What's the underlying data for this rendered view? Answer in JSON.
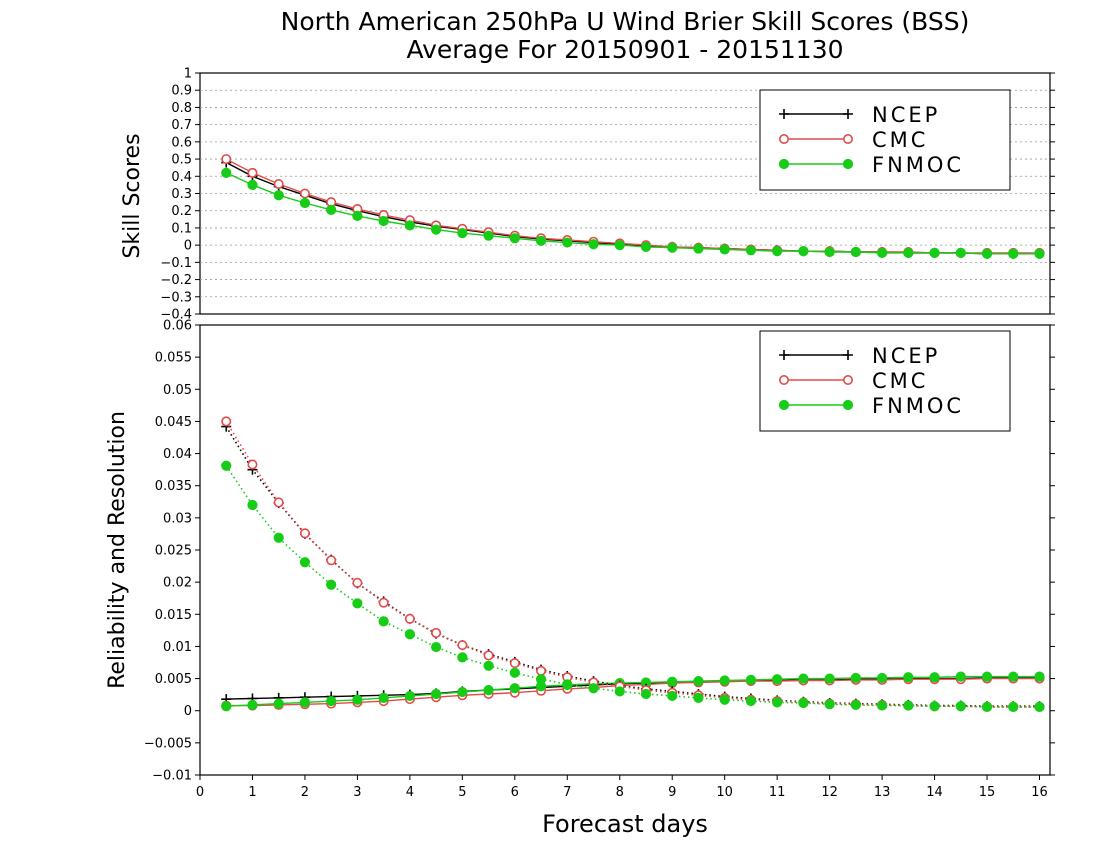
{
  "chart_data": {
    "title_lines": [
      "North American 250hPa U Wind Brier Skill Scores (BSS)",
      "Average For 20150901 - 20151130"
    ],
    "xlabel": "Forecast days",
    "x_ticks": [
      "0",
      "1",
      "2",
      "3",
      "4",
      "5",
      "6",
      "7",
      "8",
      "9",
      "10",
      "11",
      "12",
      "13",
      "14",
      "15",
      "16"
    ],
    "xlim": [
      0,
      16.2
    ],
    "x": [
      0.5,
      1,
      1.5,
      2,
      2.5,
      3,
      3.5,
      4,
      4.5,
      5,
      5.5,
      6,
      6.5,
      7,
      7.5,
      8,
      8.5,
      9,
      9.5,
      10,
      10.5,
      11,
      11.5,
      12,
      12.5,
      13,
      13.5,
      14,
      14.5,
      15,
      15.5,
      16
    ],
    "colors": {
      "NCEP": "#000000",
      "CMC": "#e34a4a",
      "FNMOC": "#16cc16"
    },
    "panels": [
      {
        "type": "line",
        "ylabel": "Skill Scores",
        "ylim": [
          -0.4,
          1.0
        ],
        "y_ticks": [
          "1",
          "0.9",
          "0.8",
          "0.7",
          "0.6",
          "0.5",
          "0.4",
          "0.3",
          "0.2",
          "0.1",
          "0",
          "−0.1",
          "−0.2",
          "−0.3",
          "−0.4"
        ],
        "grid": true,
        "legend": {
          "position": "top-right",
          "entries": [
            "NCEP",
            "CMC",
            "FNMOC"
          ]
        },
        "series": [
          {
            "name": "NCEP",
            "marker": "plus",
            "style": "solid",
            "values": [
              0.48,
              0.4,
              0.34,
              0.29,
              0.24,
              0.2,
              0.165,
              0.135,
              0.11,
              0.09,
              0.07,
              0.05,
              0.035,
              0.025,
              0.015,
              0.005,
              -0.005,
              -0.01,
              -0.015,
              -0.02,
              -0.025,
              -0.03,
              -0.035,
              -0.035,
              -0.04,
              -0.04,
              -0.045,
              -0.045,
              -0.045,
              -0.05,
              -0.05,
              -0.05
            ]
          },
          {
            "name": "CMC",
            "marker": "circle-open",
            "style": "solid",
            "values": [
              0.5,
              0.42,
              0.355,
              0.3,
              0.25,
              0.21,
              0.175,
              0.145,
              0.115,
              0.095,
              0.075,
              0.055,
              0.04,
              0.03,
              0.02,
              0.01,
              0.0,
              -0.01,
              -0.015,
              -0.02,
              -0.025,
              -0.03,
              -0.035,
              -0.035,
              -0.04,
              -0.04,
              -0.04,
              -0.045,
              -0.045,
              -0.045,
              -0.045,
              -0.045
            ]
          },
          {
            "name": "FNMOC",
            "marker": "circle-filled",
            "style": "solid",
            "values": [
              0.42,
              0.35,
              0.29,
              0.245,
              0.205,
              0.17,
              0.14,
              0.115,
              0.09,
              0.07,
              0.055,
              0.04,
              0.025,
              0.015,
              0.005,
              0.0,
              -0.01,
              -0.015,
              -0.02,
              -0.025,
              -0.03,
              -0.035,
              -0.035,
              -0.04,
              -0.04,
              -0.045,
              -0.045,
              -0.045,
              -0.045,
              -0.05,
              -0.05,
              -0.05
            ]
          }
        ]
      },
      {
        "type": "line",
        "ylabel": "Reliability and Resolution",
        "ylim": [
          -0.01,
          0.06
        ],
        "y_ticks": [
          "0.06",
          "0.055",
          "0.05",
          "0.045",
          "0.04",
          "0.035",
          "0.03",
          "0.025",
          "0.02",
          "0.015",
          "0.01",
          "0.005",
          "0",
          "−0.005",
          "−0.01"
        ],
        "grid": false,
        "legend": {
          "position": "top-right",
          "entries": [
            "NCEP",
            "CMC",
            "FNMOC"
          ]
        },
        "series": [
          {
            "name": "NCEP",
            "metric": "reliability",
            "marker": "plus",
            "style": "solid",
            "values": [
              0.0018,
              0.0019,
              0.002,
              0.0021,
              0.0022,
              0.0023,
              0.0024,
              0.0025,
              0.0027,
              0.003,
              0.0032,
              0.0034,
              0.0036,
              0.0038,
              0.004,
              0.0042,
              0.0043,
              0.0044,
              0.0045,
              0.0046,
              0.0047,
              0.0047,
              0.0048,
              0.0048,
              0.0049,
              0.0049,
              0.005,
              0.005,
              0.005,
              0.0051,
              0.0051,
              0.0051
            ]
          },
          {
            "name": "CMC",
            "metric": "reliability",
            "marker": "circle-open",
            "style": "solid",
            "values": [
              0.0008,
              0.0008,
              0.0009,
              0.001,
              0.0011,
              0.0013,
              0.0015,
              0.0018,
              0.0021,
              0.0024,
              0.0026,
              0.0028,
              0.0031,
              0.0034,
              0.0036,
              0.0039,
              0.0041,
              0.0043,
              0.0044,
              0.0045,
              0.0046,
              0.0046,
              0.0047,
              0.0047,
              0.0048,
              0.0048,
              0.0049,
              0.0049,
              0.0049,
              0.005,
              0.005,
              0.005
            ]
          },
          {
            "name": "FNMOC",
            "metric": "reliability",
            "marker": "circle-filled",
            "style": "solid",
            "values": [
              0.0007,
              0.0009,
              0.0011,
              0.0013,
              0.0015,
              0.0017,
              0.002,
              0.0023,
              0.0026,
              0.0029,
              0.0032,
              0.0035,
              0.0038,
              0.004,
              0.0042,
              0.0043,
              0.0044,
              0.0045,
              0.0046,
              0.0047,
              0.0048,
              0.0049,
              0.005,
              0.005,
              0.0051,
              0.0051,
              0.0052,
              0.0052,
              0.0053,
              0.0053,
              0.0053,
              0.0053
            ]
          },
          {
            "name": "NCEP",
            "metric": "resolution",
            "marker": "plus",
            "style": "dotted",
            "values": [
              0.0442,
              0.0375,
              0.0323,
              0.0275,
              0.0235,
              0.0198,
              0.017,
              0.0143,
              0.012,
              0.0102,
              0.0088,
              0.0076,
              0.0064,
              0.0054,
              0.0046,
              0.0039,
              0.0034,
              0.003,
              0.0026,
              0.0022,
              0.0019,
              0.0016,
              0.0014,
              0.0012,
              0.0011,
              0.001,
              0.0009,
              0.0008,
              0.0008,
              0.0007,
              0.0007,
              0.0007
            ]
          },
          {
            "name": "CMC",
            "metric": "resolution",
            "marker": "circle-open",
            "style": "dotted",
            "values": [
              0.045,
              0.0383,
              0.0324,
              0.0276,
              0.0234,
              0.0199,
              0.0168,
              0.0143,
              0.0121,
              0.0102,
              0.0086,
              0.0074,
              0.0062,
              0.0052,
              0.0044,
              0.0038,
              0.0032,
              0.0028,
              0.0024,
              0.002,
              0.0017,
              0.0015,
              0.0013,
              0.0011,
              0.001,
              0.0009,
              0.0008,
              0.0007,
              0.0007,
              0.0006,
              0.0006,
              0.0006
            ]
          },
          {
            "name": "FNMOC",
            "metric": "resolution",
            "marker": "circle-filled",
            "style": "dotted",
            "values": [
              0.0381,
              0.032,
              0.0269,
              0.0231,
              0.0196,
              0.0167,
              0.0139,
              0.0119,
              0.0099,
              0.0083,
              0.007,
              0.0059,
              0.0049,
              0.0041,
              0.0035,
              0.003,
              0.0026,
              0.0023,
              0.002,
              0.0017,
              0.0015,
              0.0013,
              0.0012,
              0.001,
              0.0009,
              0.0008,
              0.0008,
              0.0007,
              0.0007,
              0.0006,
              0.0006,
              0.0006
            ]
          }
        ]
      }
    ]
  }
}
